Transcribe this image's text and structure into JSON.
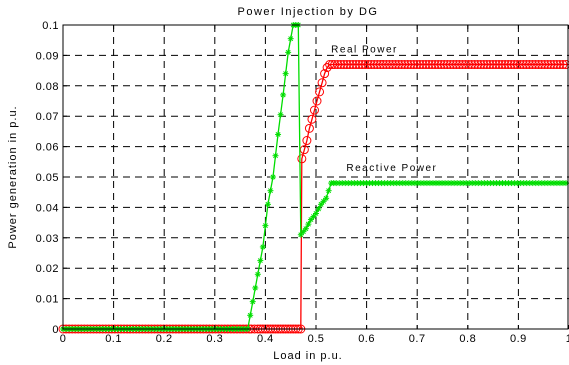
{
  "chart_data": {
    "type": "line",
    "title": "Power Injection by DG",
    "xlabel": "Load in p.u.",
    "ylabel": "Power generation in p.u.",
    "xlim": [
      0,
      1
    ],
    "ylim": [
      0,
      0.1
    ],
    "grid": true,
    "x_ticks": [
      "0",
      "0.1",
      "0.2",
      "0.3",
      "0.4",
      "0.5",
      "0.6",
      "0.7",
      "0.8",
      "0.9",
      "1"
    ],
    "y_ticks": [
      "0",
      "0.01",
      "0.02",
      "0.03",
      "0.04",
      "0.05",
      "0.06",
      "0.07",
      "0.08",
      "0.09",
      "0.1"
    ],
    "series": [
      {
        "name": "Real Power",
        "color": "#ff0000",
        "marker": "circle",
        "x": [
          0,
          0.368,
          0.372,
          0.385,
          0.395,
          0.405,
          0.415,
          0.425,
          0.435,
          0.445,
          0.455,
          0.465,
          0.47,
          0.472,
          0.477,
          0.482,
          0.487,
          0.492,
          0.497,
          0.502,
          0.507,
          0.512,
          0.517,
          0.522,
          0.527,
          0.532,
          0.537,
          1.0
        ],
        "y": [
          0,
          0,
          0,
          0,
          0,
          0,
          0,
          0,
          0,
          0,
          0,
          0,
          0,
          0.056,
          0.059,
          0.062,
          0.066,
          0.069,
          0.072,
          0.075,
          0.078,
          0.081,
          0.084,
          0.086,
          0.087,
          0.087,
          0.087,
          0.087
        ]
      },
      {
        "name": "Reactive Power",
        "color": "#00dd00",
        "marker": "star",
        "x": [
          0,
          0.365,
          0.375,
          0.385,
          0.395,
          0.405,
          0.415,
          0.425,
          0.435,
          0.445,
          0.455,
          0.465,
          0.47,
          0.48,
          0.49,
          0.5,
          0.51,
          0.52,
          0.53,
          0.54,
          1.0
        ],
        "y": [
          0,
          0,
          0.009,
          0.018,
          0.027,
          0.041,
          0.05,
          0.064,
          0.077,
          0.091,
          0.1,
          0.1,
          0.031,
          0.033,
          0.036,
          0.038,
          0.041,
          0.043,
          0.048,
          0.048,
          0.048
        ]
      }
    ],
    "annotations": [
      {
        "text": "Real Power",
        "x": 0.53,
        "y": 0.091
      },
      {
        "text": "Reactive Power",
        "x": 0.56,
        "y": 0.052
      }
    ]
  }
}
